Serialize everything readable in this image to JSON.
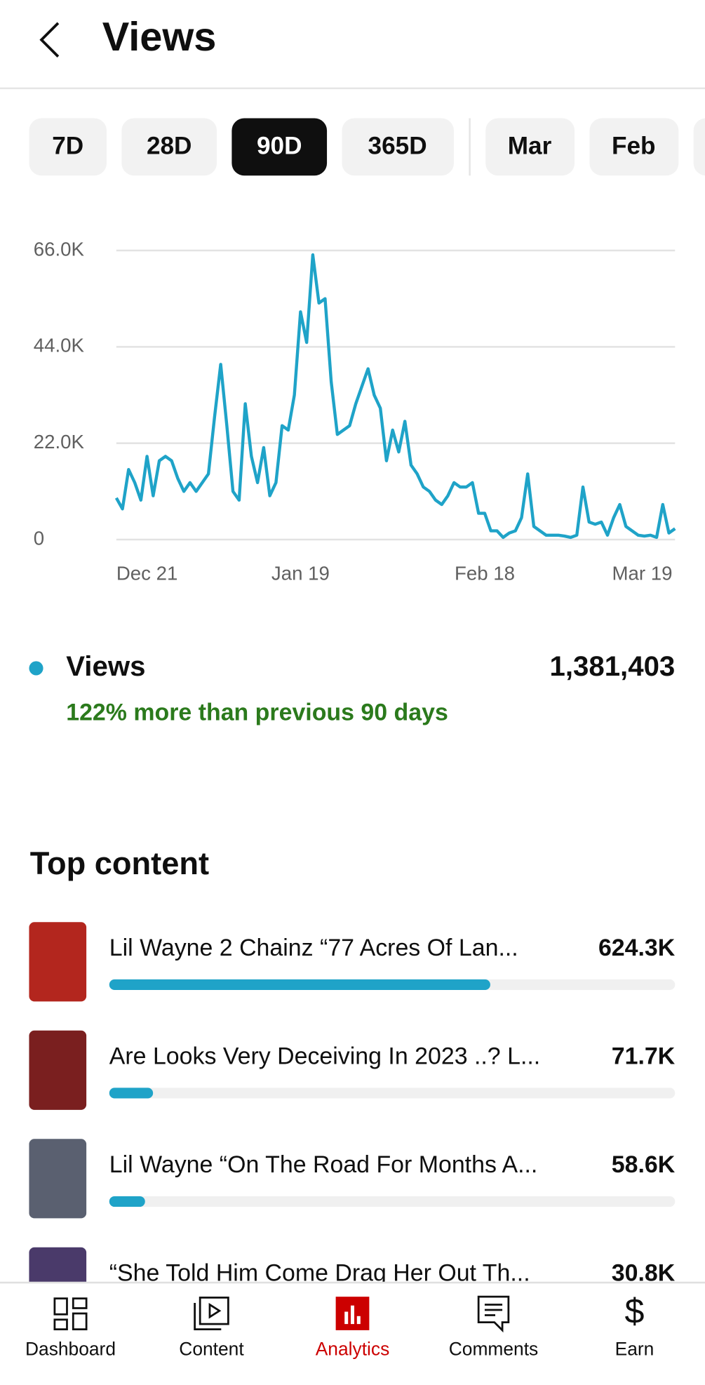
{
  "header": {
    "title": "Views"
  },
  "tabs": {
    "items": [
      "7D",
      "28D",
      "90D",
      "365D",
      "Mar",
      "Feb"
    ],
    "selected": 2
  },
  "chart_data": {
    "type": "line",
    "series": [
      {
        "name": "Views",
        "color": "#1fa3c8",
        "values": [
          9500,
          7000,
          16000,
          13000,
          9000,
          19000,
          10000,
          18000,
          19000,
          18000,
          14000,
          11000,
          13000,
          11000,
          13000,
          15000,
          28000,
          40000,
          26000,
          11000,
          9000,
          31000,
          19000,
          13000,
          21000,
          10000,
          13000,
          26000,
          25000,
          33000,
          52000,
          45000,
          65000,
          54000,
          55000,
          36000,
          24000,
          25000,
          26000,
          31000,
          35000,
          39000,
          33000,
          30000,
          18000,
          25000,
          20000,
          27000,
          17000,
          15000,
          12000,
          11000,
          9000,
          8000,
          10000,
          13000,
          12000,
          12000,
          13000,
          6000,
          6000,
          2000,
          2000,
          500,
          1500,
          2000,
          5000,
          15000,
          3000,
          2000,
          1000,
          1000,
          1000,
          800,
          500,
          1000,
          12000,
          4000,
          3500,
          4000,
          1000,
          5000,
          8000,
          3000,
          2000,
          1000,
          800,
          1000,
          500,
          8000,
          1500,
          2500
        ]
      }
    ],
    "xlim": [
      0,
      91
    ],
    "xticks": [
      {
        "value": 1,
        "label": "Dec 21"
      },
      {
        "value": 30,
        "label": "Jan 19"
      },
      {
        "value": 60,
        "label": "Feb 18"
      },
      {
        "value": 89,
        "label": "Mar 19"
      }
    ],
    "ylim": [
      0,
      66000
    ],
    "yticks": [
      {
        "value": 0,
        "label": "0"
      },
      {
        "value": 22000,
        "label": "22.0K"
      },
      {
        "value": 44000,
        "label": "44.0K"
      },
      {
        "value": 66000,
        "label": "66.0K"
      }
    ],
    "grid": true
  },
  "summary": {
    "total": "1,381,403",
    "comparison": "122% more than previous 90 days"
  },
  "top_content": {
    "title": "Top content",
    "xlim": [
      0,
      927000
    ],
    "color": "#1fa3c8",
    "items": [
      {
        "title": "Lil Wayne 2 Chainz “77 Acres Of Lan...",
        "value": 624300,
        "value_label": "624.3K"
      },
      {
        "title": "Are Looks Very Deceiving In 2023 ..? L...",
        "value": 71700,
        "value_label": "71.7K"
      },
      {
        "title": "Lil Wayne “On The Road For Months A...",
        "value": 58600,
        "value_label": "58.6K"
      },
      {
        "title": "“She Told Him Come Drag Her Out Th...",
        "value": 30800,
        "value_label": "30.8K"
      }
    ]
  },
  "nav": {
    "items": [
      "Dashboard",
      "Content",
      "Analytics",
      "Comments",
      "Earn"
    ],
    "selected": 2
  }
}
